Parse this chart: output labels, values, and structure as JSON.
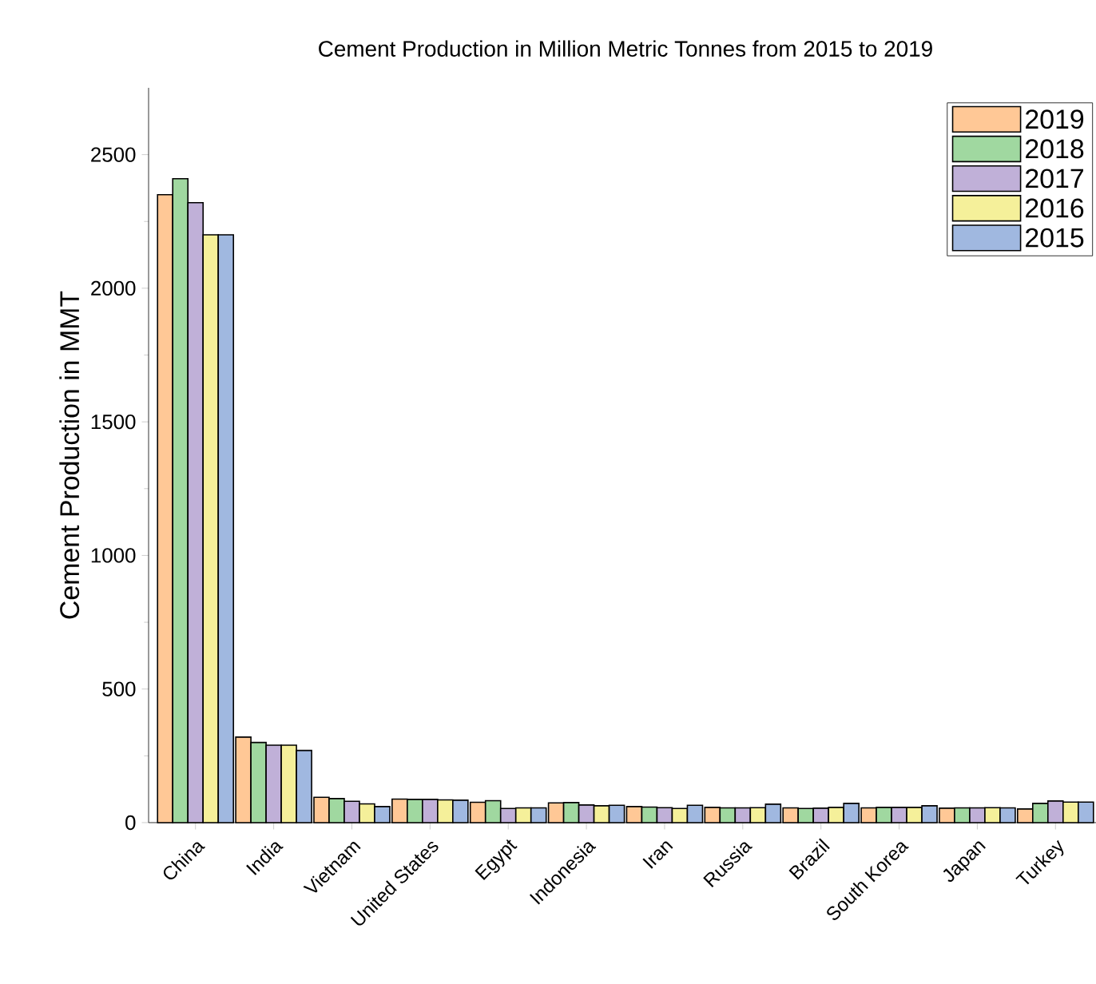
{
  "chart_data": {
    "type": "bar",
    "title": "Cement Production in Million Metric Tonnes  from 2015 to 2019",
    "ylabel": "Cement Production  in MMT",
    "categories": [
      "China",
      "India",
      "Vietnam",
      "United States",
      "Egypt",
      "Indonesia",
      "Iran",
      "Russia",
      "Brazil",
      "South Korea",
      "Japan",
      "Turkey"
    ],
    "series": [
      {
        "name": "2019",
        "color": "#ffc896",
        "values": [
          2350,
          320,
          95,
          88,
          76,
          74,
          60,
          57,
          55,
          55,
          54,
          51
        ]
      },
      {
        "name": "2018",
        "color": "#a0d8a0",
        "values": [
          2410,
          300,
          90,
          87,
          82,
          75,
          58,
          55,
          53,
          57,
          55,
          72
        ]
      },
      {
        "name": "2017",
        "color": "#c0b0d8",
        "values": [
          2320,
          290,
          80,
          87,
          53,
          66,
          56,
          55,
          54,
          57,
          55,
          81
        ]
      },
      {
        "name": "2016",
        "color": "#f5f09a",
        "values": [
          2200,
          290,
          70,
          85,
          55,
          63,
          53,
          56,
          57,
          57,
          56,
          77
        ]
      },
      {
        "name": "2015",
        "color": "#a0b8e0",
        "values": [
          2200,
          270,
          60,
          84,
          55,
          65,
          65,
          69,
          72,
          63,
          55,
          77
        ]
      }
    ],
    "ylim": [
      0,
      2750
    ],
    "yticks": [
      0,
      500,
      1000,
      1500,
      2000,
      2500
    ],
    "grid": false,
    "legend": "top right"
  }
}
